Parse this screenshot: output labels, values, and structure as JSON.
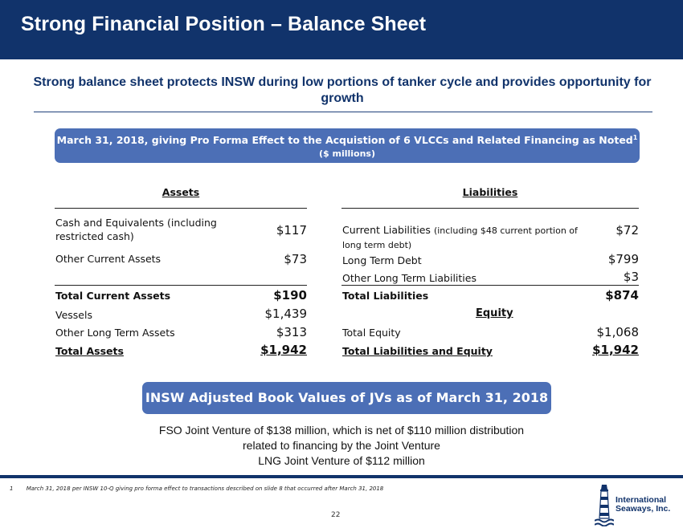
{
  "header": {
    "title": "Strong Financial Position – Balance Sheet"
  },
  "subtitle": "Strong balance sheet protects INSW during low portions of tanker cycle and provides opportunity for growth",
  "banner": {
    "line1": "March 31, 2018, giving Pro Forma Effect to the Acquistion of 6 VLCCs and Related Financing as Noted",
    "footnote_ref": "1",
    "line2": "($ millions)"
  },
  "assets": {
    "heading": "Assets",
    "rows": [
      {
        "label": "Cash and Equivalents (including restricted cash)",
        "value": "$117"
      },
      {
        "label": "Other Current Assets",
        "value": "$73"
      },
      {
        "label": "Total Current Assets",
        "value": "$190"
      },
      {
        "label": "Vessels",
        "value": "$1,439"
      },
      {
        "label": "Other Long Term Assets",
        "value": "$313"
      },
      {
        "label": "Total Assets",
        "value": "$1,942"
      }
    ]
  },
  "liabilities": {
    "heading": "Liabilities",
    "current_label": "Current Liabilities",
    "current_note": "(including $48 current portion of long term debt)",
    "current_value": "$72",
    "rows": [
      {
        "label": "Long Term Debt",
        "value": "$799"
      },
      {
        "label": "Other Long Term Liabilities",
        "value": "$3"
      },
      {
        "label": "Total Liabilities",
        "value": "$874"
      }
    ],
    "equity_heading": "Equity",
    "equity_rows": [
      {
        "label": "Total Equity",
        "value": "$1,068"
      },
      {
        "label": "Total Liabilities and Equity",
        "value": "$1,942"
      }
    ]
  },
  "jv": {
    "heading": "INSW Adjusted Book Values of JVs as of  March 31, 2018",
    "lines": [
      "FSO Joint Venture of $138 million, which is net of $110 million distribution",
      "related to financing by the Joint Venture",
      "LNG Joint Venture of $112 million"
    ]
  },
  "footer": {
    "footnote_number": "1",
    "footnote_text": "March 31, 2018 per INSW 10-Q giving pro forma effect to transactions described on slide 8 that occurred after March 31, 2018",
    "page_number": "22",
    "logo_line1": "International",
    "logo_line2": "Seaways, Inc."
  },
  "colors": {
    "navy": "#11336b",
    "pill": "#4c6fb6"
  }
}
